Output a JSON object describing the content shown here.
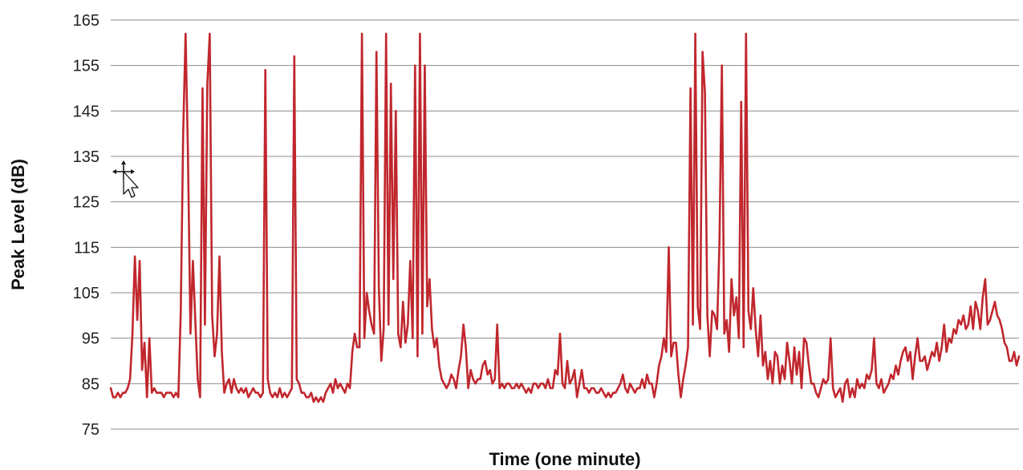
{
  "colors": {
    "series": "#c0272d",
    "grid": "#8c8c8c",
    "text": "#222222"
  },
  "icons": {
    "cursor": "move-cursor-icon"
  },
  "chart_data": {
    "type": "line",
    "title": "",
    "xlabel": "Time (one minute)",
    "ylabel": "Peak Level (dB)",
    "ylim": [
      75,
      165
    ],
    "yticks": [
      "75",
      "85",
      "95",
      "105",
      "115",
      "125",
      "135",
      "145",
      "155",
      "165"
    ],
    "x_ticks_shown": false,
    "grid": "horizontal",
    "legend": "none",
    "series": [
      {
        "values": [
          84,
          82,
          82,
          83,
          82,
          83,
          83,
          84,
          86,
          96,
          113,
          99,
          112,
          88,
          94,
          82,
          95,
          83,
          84,
          83,
          83,
          83,
          82,
          83,
          83,
          83,
          82,
          83,
          82,
          101,
          140,
          162,
          135,
          96,
          112,
          99,
          86,
          82,
          150,
          98,
          151,
          162,
          100,
          91,
          96,
          113,
          92,
          83,
          85,
          86,
          83,
          86,
          84,
          83,
          84,
          83,
          84,
          82,
          83,
          84,
          83,
          83,
          82,
          83,
          154,
          86,
          83,
          82,
          83,
          82,
          84,
          82,
          83,
          82,
          83,
          84,
          157,
          86,
          85,
          83,
          83,
          82,
          82,
          83,
          81,
          82,
          81,
          82,
          81,
          83,
          84,
          85,
          83,
          86,
          84,
          85,
          84,
          83,
          85,
          84,
          92,
          96,
          93,
          93,
          162,
          95,
          105,
          101,
          98,
          96,
          158,
          106,
          90,
          97,
          162,
          98,
          151,
          108,
          145,
          96,
          93,
          103,
          94,
          98,
          112,
          95,
          155,
          91,
          162,
          96,
          155,
          102,
          108,
          97,
          93,
          95,
          89,
          86,
          85,
          84,
          85,
          87,
          86,
          84,
          88,
          91,
          98,
          93,
          84,
          88,
          86,
          85,
          86,
          86,
          89,
          90,
          87,
          88,
          85,
          86,
          98,
          84,
          85,
          84,
          85,
          85,
          84,
          84,
          85,
          84,
          85,
          84,
          83,
          84,
          83,
          85,
          85,
          84,
          85,
          85,
          84,
          86,
          84,
          84,
          88,
          87,
          96,
          85,
          84,
          90,
          85,
          86,
          88,
          82,
          85,
          88,
          84,
          84,
          83,
          84,
          84,
          83,
          83,
          84,
          83,
          82,
          83,
          82,
          83,
          83,
          84,
          85,
          87,
          84,
          83,
          85,
          84,
          83,
          84,
          84,
          86,
          84,
          87,
          85,
          85,
          82,
          85,
          89,
          91,
          95,
          92,
          115,
          91,
          94,
          94,
          87,
          82,
          86,
          89,
          93,
          150,
          98,
          162,
          102,
          97,
          158,
          149,
          100,
          91,
          101,
          100,
          97,
          116,
          155,
          96,
          99,
          92,
          108,
          100,
          104,
          95,
          147,
          93,
          162,
          101,
          97,
          106,
          97,
          91,
          100,
          89,
          92,
          86,
          90,
          85,
          92,
          91,
          85,
          89,
          86,
          94,
          90,
          85,
          93,
          87,
          92,
          84,
          95,
          94,
          89,
          85,
          85,
          83,
          82,
          84,
          86,
          85,
          86,
          95,
          84,
          82,
          83,
          84,
          81,
          85,
          86,
          82,
          84,
          82,
          86,
          84,
          85,
          84,
          87,
          86,
          88,
          95,
          85,
          84,
          86,
          83,
          84,
          85,
          87,
          86,
          89,
          87,
          90,
          92,
          93,
          90,
          92,
          86,
          91,
          95,
          90,
          90,
          91,
          88,
          90,
          92,
          91,
          94,
          90,
          93,
          98,
          92,
          95,
          94,
          97,
          96,
          99,
          98,
          100,
          97,
          98,
          102,
          97,
          103,
          101,
          97,
          104,
          108,
          98,
          99,
          101,
          103,
          100,
          99,
          97,
          94,
          93,
          90,
          90,
          92,
          89,
          91
        ],
        "marks": [],
        "line": "solid"
      }
    ]
  }
}
